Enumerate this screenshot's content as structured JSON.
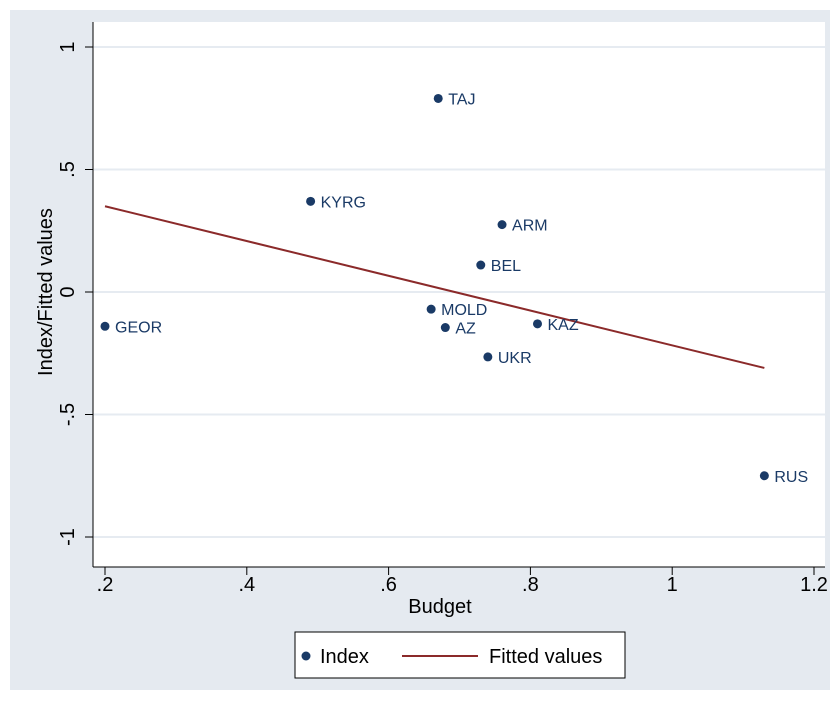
{
  "chart_data": {
    "type": "scatter",
    "xlabel": "Budget",
    "ylabel": "Index/Fitted values",
    "xlim": [
      0.2,
      1.2
    ],
    "ylim": [
      -1,
      1
    ],
    "x_ticks": [
      ".2",
      ".4",
      ".6",
      ".8",
      "1",
      "1.2"
    ],
    "y_ticks": [
      "-1",
      "-.5",
      "0",
      ".5",
      "1"
    ],
    "grid": "horizontal",
    "legend_position": "bottom",
    "series": [
      {
        "name": "Index",
        "kind": "scatter",
        "color": "#1a3a66",
        "points": [
          {
            "label": "TAJ",
            "x": 0.67,
            "y": 0.79
          },
          {
            "label": "KYRG",
            "x": 0.49,
            "y": 0.37
          },
          {
            "label": "ARM",
            "x": 0.76,
            "y": 0.275
          },
          {
            "label": "BEL",
            "x": 0.73,
            "y": 0.11
          },
          {
            "label": "MOLD",
            "x": 0.66,
            "y": -0.07
          },
          {
            "label": "AZ",
            "x": 0.68,
            "y": -0.145
          },
          {
            "label": "KAZ",
            "x": 0.81,
            "y": -0.13
          },
          {
            "label": "GEOR",
            "x": 0.2,
            "y": -0.14
          },
          {
            "label": "UKR",
            "x": 0.74,
            "y": -0.265
          },
          {
            "label": "RUS",
            "x": 1.13,
            "y": -0.75
          }
        ]
      },
      {
        "name": "Fitted values",
        "kind": "line",
        "color": "#8b2a2a",
        "x": [
          0.2,
          1.13
        ],
        "y": [
          0.35,
          -0.31
        ]
      }
    ]
  }
}
